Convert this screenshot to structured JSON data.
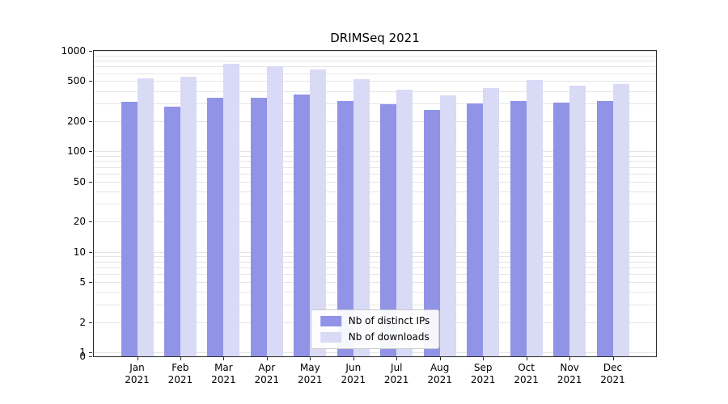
{
  "chart_data": {
    "type": "bar",
    "title": "DRIMSeq 2021",
    "year": "2021",
    "categories": [
      "Jan",
      "Feb",
      "Mar",
      "Apr",
      "May",
      "Jun",
      "Jul",
      "Aug",
      "Sep",
      "Oct",
      "Nov",
      "Dec"
    ],
    "series": [
      {
        "name": "Nb of distinct IPs",
        "color": "#9193e6",
        "values": [
          310,
          280,
          345,
          345,
          365,
          320,
          295,
          260,
          300,
          320,
          305,
          320
        ]
      },
      {
        "name": "Nb of downloads",
        "color": "#d9daf6",
        "values": [
          530,
          550,
          750,
          710,
          650,
          520,
          410,
          360,
          430,
          510,
          455,
          465
        ]
      }
    ],
    "yscale": "log",
    "ylim": [
      0,
      1000
    ],
    "yticks": [
      0,
      1,
      2,
      5,
      10,
      20,
      50,
      100,
      200,
      500,
      1000
    ],
    "grid": true,
    "legend_position": "lower center",
    "colors": {
      "axis": "#2a2a2a",
      "gridline": "#e5e5e5",
      "background": "#ffffff"
    }
  }
}
